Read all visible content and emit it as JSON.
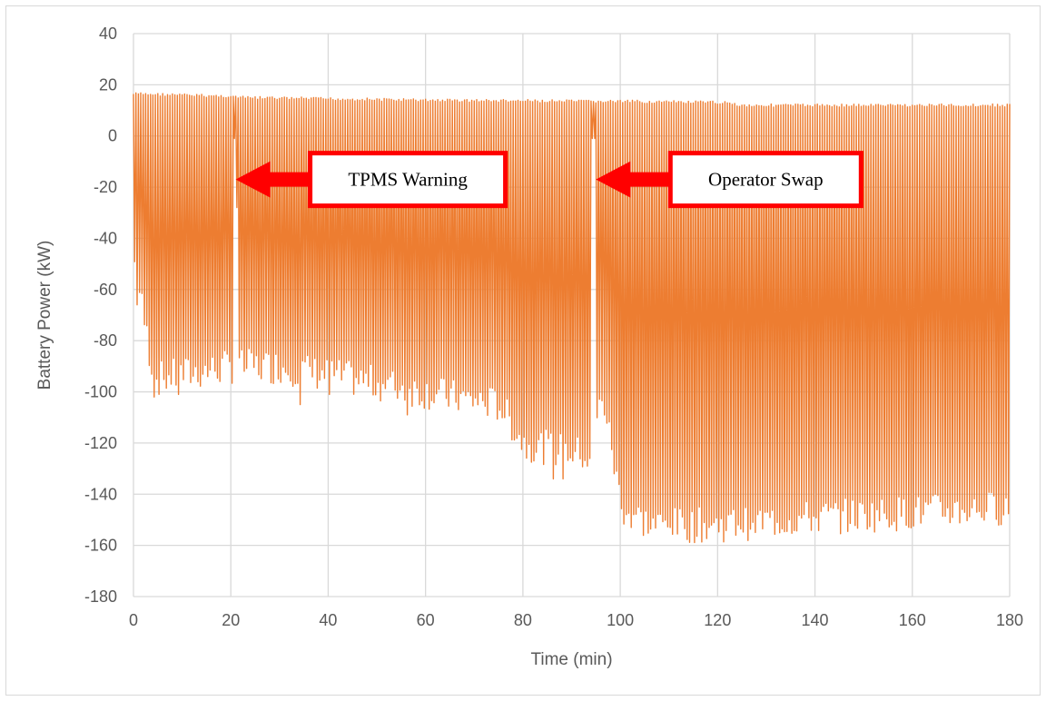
{
  "chart_data": {
    "type": "line",
    "title": "",
    "xlabel": "Time (min)",
    "ylabel": "Battery Power (kW)",
    "xlim": [
      0,
      180
    ],
    "ylim": [
      -180,
      40
    ],
    "x_ticks": [
      0,
      20,
      40,
      60,
      80,
      100,
      120,
      140,
      160,
      180
    ],
    "y_ticks": [
      40,
      20,
      0,
      -20,
      -40,
      -60,
      -80,
      -100,
      -120,
      -140,
      -160,
      -180
    ],
    "grid": true,
    "legend": "none",
    "series": [
      {
        "color": "#ED7D31",
        "oscillation_period_min": 0.5,
        "upper_envelope": [
          [
            0,
            17
          ],
          [
            20,
            16
          ],
          [
            22,
            15.5
          ],
          [
            60,
            14.5
          ],
          [
            94,
            14
          ],
          [
            100,
            14
          ],
          [
            123,
            13.5
          ],
          [
            124,
            12.5
          ],
          [
            180,
            12.5
          ]
        ],
        "lower_envelope": [
          [
            0,
            -50
          ],
          [
            4,
            -95
          ],
          [
            20,
            -90
          ],
          [
            21,
            -90
          ],
          [
            30,
            -90
          ],
          [
            60,
            -100
          ],
          [
            75,
            -105
          ],
          [
            80,
            -120
          ],
          [
            94,
            -125
          ],
          [
            96,
            -100
          ],
          [
            100,
            -145
          ],
          [
            106,
            -152
          ],
          [
            120,
            -152
          ],
          [
            140,
            -149
          ],
          [
            180,
            -145
          ]
        ],
        "spikes": [
          [
            0.3,
            -66
          ],
          [
            4,
            -102
          ],
          [
            9,
            -101
          ],
          [
            21,
            -28
          ],
          [
            34,
            -105
          ],
          [
            40,
            -101
          ],
          [
            56,
            -109
          ],
          [
            82,
            -127
          ],
          [
            86,
            -134
          ],
          [
            88,
            -134
          ],
          [
            93,
            -129
          ],
          [
            101,
            -148
          ],
          [
            102,
            -153
          ],
          [
            110,
            -153
          ],
          [
            118,
            -153
          ],
          [
            124,
            -152
          ],
          [
            127,
            -151
          ]
        ],
        "gaps": [
          [
            20.5,
            20
          ],
          [
            94.3,
            20
          ]
        ]
      }
    ],
    "annotations": [
      {
        "text": "TPMS Warning",
        "arrow_to": [
          21,
          -17
        ]
      },
      {
        "text": "Operator Swap",
        "arrow_to": [
          95,
          -17
        ]
      }
    ]
  }
}
